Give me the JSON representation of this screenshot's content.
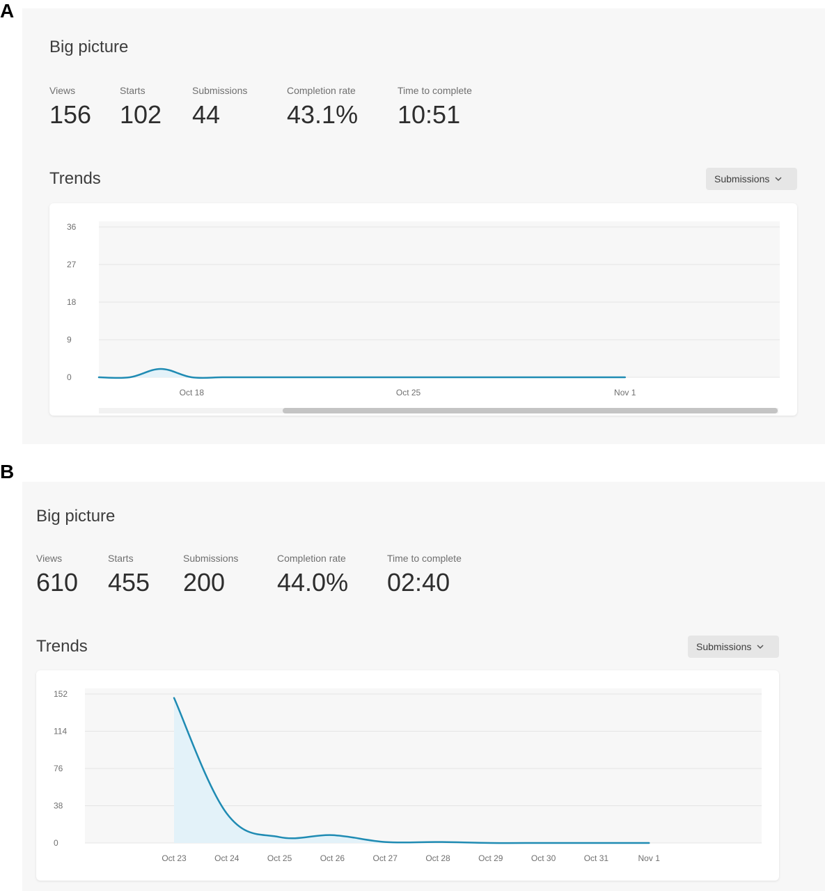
{
  "panels": [
    {
      "letter": "A",
      "big_picture_title": "Big picture",
      "metrics": [
        {
          "label": "Views",
          "value": "156"
        },
        {
          "label": "Starts",
          "value": "102"
        },
        {
          "label": "Submissions",
          "value": "44"
        },
        {
          "label": "Completion rate",
          "value": "43.1%"
        },
        {
          "label": "Time to complete",
          "value": "10:51"
        }
      ],
      "trends_title": "Trends",
      "dropdown_label": "Submissions"
    },
    {
      "letter": "B",
      "big_picture_title": "Big picture",
      "metrics": [
        {
          "label": "Views",
          "value": "610"
        },
        {
          "label": "Starts",
          "value": "455"
        },
        {
          "label": "Submissions",
          "value": "200"
        },
        {
          "label": "Completion rate",
          "value": "44.0%"
        },
        {
          "label": "Time to complete",
          "value": "02:40"
        }
      ],
      "trends_title": "Trends",
      "dropdown_label": "Submissions"
    }
  ],
  "colors": {
    "line": "#1f8bb3",
    "fill": "#e3f2f9",
    "plot_bg": "#f7f7f7",
    "grid": "#e4e4e4",
    "tick_text": "#6f6f6f"
  },
  "chart_data": [
    {
      "type": "area",
      "y_ticks": [
        0,
        9,
        18,
        27,
        36
      ],
      "ylim": [
        0,
        36
      ],
      "x_tick_labels": [
        "Oct 18",
        "Oct 25",
        "Nov 1"
      ],
      "x_tick_days": [
        3,
        10,
        17
      ],
      "x_range_days": [
        0,
        22
      ],
      "series": [
        {
          "x_days": [
            0,
            1,
            2,
            3,
            4,
            5,
            6,
            7,
            8,
            9,
            10,
            11,
            12,
            13,
            14,
            15,
            16,
            17
          ],
          "values": [
            0,
            0,
            2,
            0,
            0,
            0,
            0,
            0,
            0,
            0,
            0,
            0,
            0,
            0,
            0,
            0,
            0,
            0
          ]
        }
      ],
      "grid": true,
      "scrollbar": true
    },
    {
      "type": "area",
      "y_ticks": [
        0,
        38,
        76,
        114,
        152
      ],
      "ylim": [
        0,
        152
      ],
      "categories": [
        "Oct 23",
        "Oct 24",
        "Oct 25",
        "Oct 26",
        "Oct 27",
        "Oct 28",
        "Oct 29",
        "Oct 30",
        "Oct 31",
        "Nov 1"
      ],
      "series": [
        {
          "values": [
            148,
            30,
            6,
            8,
            1,
            1,
            0,
            0,
            0,
            0
          ]
        }
      ],
      "grid": true,
      "scrollbar": false
    }
  ]
}
